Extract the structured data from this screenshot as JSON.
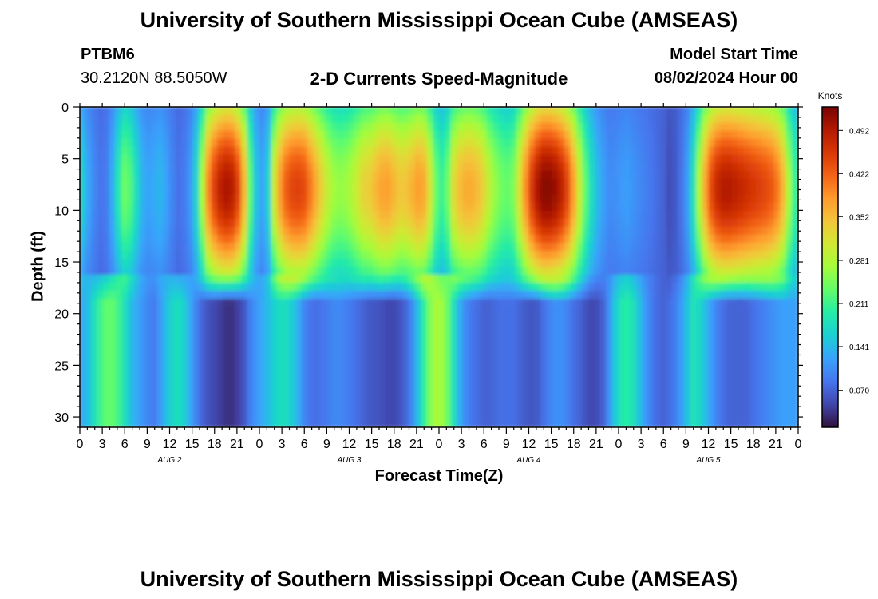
{
  "header": {
    "title_top": "University of Southern Mississippi Ocean Cube (AMSEAS)",
    "title_bottom": "University of Southern Mississippi Ocean Cube (AMSEAS)",
    "station": "PTBM6",
    "coords": "30.2120N  88.5050W",
    "plot_title": "2-D Currents Speed-Magnitude",
    "start_label": "Model Start Time",
    "start_value": "08/02/2024 Hour 00"
  },
  "colorbar": {
    "unit": "Knots",
    "ticks": [
      0.07,
      0.141,
      0.211,
      0.281,
      0.352,
      0.422,
      0.492
    ],
    "tick_labels": [
      "0.070",
      "0.141",
      "0.211",
      "0.281",
      "0.352",
      "0.422",
      "0.492"
    ],
    "range": [
      0.01,
      0.53
    ],
    "palette": [
      "#30123b",
      "#4145ab",
      "#4675ed",
      "#39a2fc",
      "#1bcfd4",
      "#24eca6",
      "#61fc6c",
      "#a4fc3b",
      "#d1e834",
      "#f3c63a",
      "#fe9b2d",
      "#f36315",
      "#d93806",
      "#b11901",
      "#7a0403"
    ]
  },
  "chart_data": {
    "type": "heatmap",
    "title": "2-D Currents Speed-Magnitude",
    "xlabel": "Forecast Time(Z)",
    "ylabel": "Depth (ft)",
    "x_range_hours": [
      0,
      96
    ],
    "ylim": [
      31,
      0
    ],
    "y_ticks": [
      0,
      5,
      10,
      15,
      20,
      25,
      30
    ],
    "x_tick_labels": [
      "0",
      "3",
      "6",
      "9",
      "12",
      "15",
      "18",
      "21",
      "0",
      "3",
      "6",
      "9",
      "12",
      "15",
      "18",
      "21",
      "0",
      "3",
      "6",
      "9",
      "12",
      "15",
      "18",
      "21",
      "0",
      "3",
      "6",
      "9",
      "12",
      "15",
      "18",
      "21",
      "0"
    ],
    "day_labels": [
      "AUG 2",
      "AUG 3",
      "AUG 4",
      "AUG 5"
    ],
    "depth_break_ft": 16,
    "upper_profile_knots": [
      [
        0,
        0.18
      ],
      [
        1,
        0.13
      ],
      [
        2,
        0.1
      ],
      [
        3,
        0.08
      ],
      [
        4,
        0.1
      ],
      [
        5,
        0.18
      ],
      [
        6,
        0.24
      ],
      [
        7,
        0.22
      ],
      [
        8,
        0.15
      ],
      [
        9,
        0.12
      ],
      [
        10,
        0.13
      ],
      [
        11,
        0.14
      ],
      [
        12,
        0.11
      ],
      [
        13,
        0.08
      ],
      [
        14,
        0.09
      ],
      [
        15,
        0.12
      ],
      [
        16,
        0.2
      ],
      [
        17,
        0.38
      ],
      [
        18,
        0.45
      ],
      [
        19,
        0.49
      ],
      [
        20,
        0.5
      ],
      [
        21,
        0.47
      ],
      [
        22,
        0.36
      ],
      [
        23,
        0.2
      ],
      [
        24,
        0.12
      ],
      [
        25,
        0.13
      ],
      [
        26,
        0.3
      ],
      [
        27,
        0.4
      ],
      [
        28,
        0.44
      ],
      [
        29,
        0.45
      ],
      [
        30,
        0.44
      ],
      [
        31,
        0.4
      ],
      [
        32,
        0.35
      ],
      [
        33,
        0.3
      ],
      [
        34,
        0.27
      ],
      [
        35,
        0.26
      ],
      [
        36,
        0.27
      ],
      [
        37,
        0.3
      ],
      [
        38,
        0.33
      ],
      [
        39,
        0.34
      ],
      [
        40,
        0.37
      ],
      [
        41,
        0.38
      ],
      [
        42,
        0.36
      ],
      [
        43,
        0.34
      ],
      [
        44,
        0.35
      ],
      [
        45,
        0.38
      ],
      [
        46,
        0.37
      ],
      [
        47,
        0.3
      ],
      [
        48,
        0.2
      ],
      [
        49,
        0.22
      ],
      [
        50,
        0.32
      ],
      [
        51,
        0.36
      ],
      [
        52,
        0.37
      ],
      [
        53,
        0.36
      ],
      [
        54,
        0.33
      ],
      [
        55,
        0.28
      ],
      [
        56,
        0.25
      ],
      [
        57,
        0.23
      ],
      [
        58,
        0.25
      ],
      [
        59,
        0.33
      ],
      [
        60,
        0.43
      ],
      [
        61,
        0.49
      ],
      [
        62,
        0.52
      ],
      [
        63,
        0.52
      ],
      [
        64,
        0.5
      ],
      [
        65,
        0.46
      ],
      [
        66,
        0.38
      ],
      [
        67,
        0.28
      ],
      [
        68,
        0.2
      ],
      [
        69,
        0.15
      ],
      [
        70,
        0.12
      ],
      [
        71,
        0.1
      ],
      [
        72,
        0.11
      ],
      [
        73,
        0.12
      ],
      [
        74,
        0.11
      ],
      [
        75,
        0.1
      ],
      [
        76,
        0.09
      ],
      [
        77,
        0.08
      ],
      [
        78,
        0.07
      ],
      [
        79,
        0.05
      ],
      [
        80,
        0.07
      ],
      [
        81,
        0.1
      ],
      [
        82,
        0.18
      ],
      [
        83,
        0.3
      ],
      [
        84,
        0.42
      ],
      [
        85,
        0.47
      ],
      [
        86,
        0.49
      ],
      [
        87,
        0.49
      ],
      [
        88,
        0.48
      ],
      [
        89,
        0.47
      ],
      [
        90,
        0.46
      ],
      [
        91,
        0.45
      ],
      [
        92,
        0.44
      ],
      [
        93,
        0.42
      ],
      [
        94,
        0.36
      ],
      [
        95,
        0.25
      ],
      [
        96,
        0.18
      ]
    ],
    "lower_profile_knots": [
      [
        0,
        0.12
      ],
      [
        1,
        0.14
      ],
      [
        2,
        0.18
      ],
      [
        3,
        0.22
      ],
      [
        4,
        0.24
      ],
      [
        5,
        0.22
      ],
      [
        6,
        0.18
      ],
      [
        7,
        0.14
      ],
      [
        8,
        0.12
      ],
      [
        9,
        0.1
      ],
      [
        10,
        0.09
      ],
      [
        11,
        0.12
      ],
      [
        12,
        0.16
      ],
      [
        13,
        0.18
      ],
      [
        14,
        0.16
      ],
      [
        15,
        0.12
      ],
      [
        16,
        0.08
      ],
      [
        17,
        0.06
      ],
      [
        18,
        0.05
      ],
      [
        19,
        0.04
      ],
      [
        20,
        0.03
      ],
      [
        21,
        0.04
      ],
      [
        22,
        0.06
      ],
      [
        23,
        0.1
      ],
      [
        24,
        0.12
      ],
      [
        25,
        0.14
      ],
      [
        26,
        0.16
      ],
      [
        27,
        0.18
      ],
      [
        28,
        0.17
      ],
      [
        29,
        0.14
      ],
      [
        30,
        0.1
      ],
      [
        31,
        0.08
      ],
      [
        32,
        0.08
      ],
      [
        33,
        0.09
      ],
      [
        34,
        0.1
      ],
      [
        35,
        0.1
      ],
      [
        36,
        0.09
      ],
      [
        37,
        0.08
      ],
      [
        38,
        0.07
      ],
      [
        39,
        0.06
      ],
      [
        40,
        0.06
      ],
      [
        41,
        0.05
      ],
      [
        42,
        0.05
      ],
      [
        43,
        0.06
      ],
      [
        44,
        0.08
      ],
      [
        45,
        0.13
      ],
      [
        46,
        0.2
      ],
      [
        47,
        0.26
      ],
      [
        48,
        0.28
      ],
      [
        49,
        0.25
      ],
      [
        50,
        0.18
      ],
      [
        51,
        0.12
      ],
      [
        52,
        0.09
      ],
      [
        53,
        0.08
      ],
      [
        54,
        0.07
      ],
      [
        55,
        0.07
      ],
      [
        56,
        0.08
      ],
      [
        57,
        0.08
      ],
      [
        58,
        0.08
      ],
      [
        59,
        0.07
      ],
      [
        60,
        0.06
      ],
      [
        61,
        0.06
      ],
      [
        62,
        0.08
      ],
      [
        63,
        0.1
      ],
      [
        64,
        0.11
      ],
      [
        65,
        0.1
      ],
      [
        66,
        0.08
      ],
      [
        67,
        0.07
      ],
      [
        68,
        0.05
      ],
      [
        69,
        0.05
      ],
      [
        70,
        0.07
      ],
      [
        71,
        0.12
      ],
      [
        72,
        0.18
      ],
      [
        73,
        0.2
      ],
      [
        74,
        0.18
      ],
      [
        75,
        0.14
      ],
      [
        76,
        0.1
      ],
      [
        77,
        0.08
      ],
      [
        78,
        0.07
      ],
      [
        79,
        0.08
      ],
      [
        80,
        0.1
      ],
      [
        81,
        0.14
      ],
      [
        82,
        0.18
      ],
      [
        83,
        0.17
      ],
      [
        84,
        0.13
      ],
      [
        85,
        0.1
      ],
      [
        86,
        0.08
      ],
      [
        87,
        0.07
      ],
      [
        88,
        0.07
      ],
      [
        89,
        0.07
      ],
      [
        90,
        0.08
      ],
      [
        91,
        0.09
      ],
      [
        92,
        0.1
      ],
      [
        93,
        0.11
      ],
      [
        94,
        0.12
      ],
      [
        95,
        0.12
      ],
      [
        96,
        0.12
      ]
    ]
  }
}
